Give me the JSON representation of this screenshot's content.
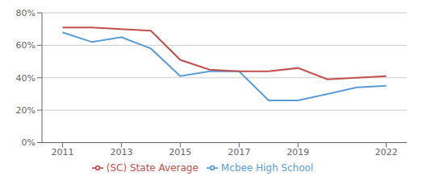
{
  "chart_data": {
    "type": "line",
    "x": [
      2011,
      2012,
      2013,
      2014,
      2015,
      2016,
      2017,
      2018,
      2019,
      2020,
      2021,
      2022
    ],
    "series": [
      {
        "name": "Mcbee High School",
        "color": "#5b9bd5",
        "values": [
          0.68,
          0.62,
          0.65,
          0.58,
          0.41,
          0.44,
          0.44,
          0.26,
          0.26,
          0.3,
          0.34,
          0.35
        ]
      },
      {
        "name": "(SC) State Average",
        "color": "#c0504d",
        "values": [
          0.71,
          0.71,
          0.7,
          0.69,
          0.51,
          0.45,
          0.44,
          0.44,
          0.46,
          0.39,
          0.4,
          0.41
        ]
      }
    ],
    "xlim": [
      2010.3,
      2022.7
    ],
    "xticks": [
      2011,
      2013,
      2015,
      2017,
      2019,
      2022
    ],
    "ylim": [
      0.0,
      0.8
    ],
    "yticks": [
      {
        "value": 0.0,
        "label": "0%"
      },
      {
        "value": 0.2,
        "label": "20%"
      },
      {
        "value": 0.4,
        "label": "40%"
      },
      {
        "value": 0.6,
        "label": "60%"
      },
      {
        "value": 0.8,
        "label": "80%"
      }
    ],
    "grid": true,
    "legend": "bottom"
  }
}
